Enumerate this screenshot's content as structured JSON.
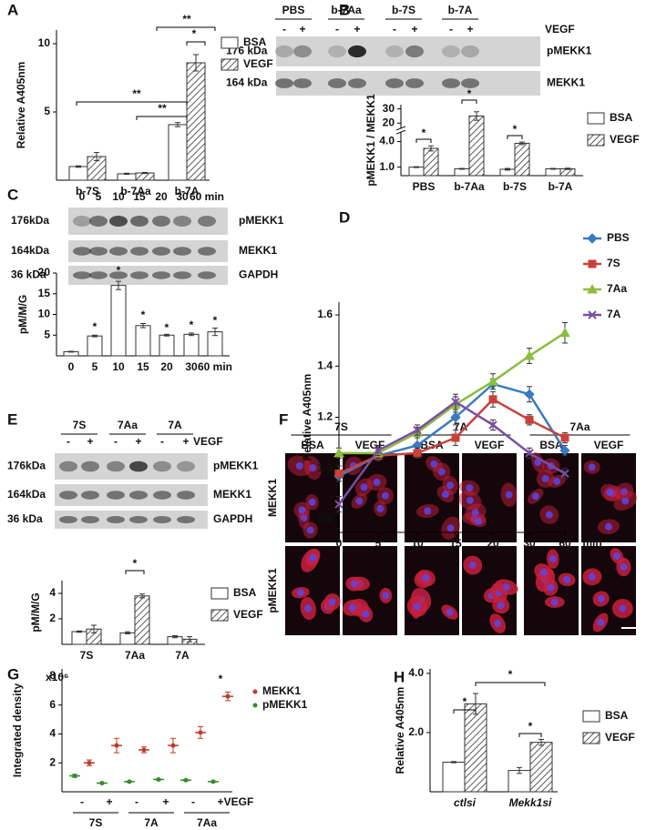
{
  "panel_labels": [
    "A",
    "B",
    "C",
    "D",
    "E",
    "F",
    "G",
    "H"
  ],
  "blots": [
    {
      "lanes": [
        "PBS",
        "b-7Aa",
        "b-7S",
        "b-7A"
      ],
      "treatment": "VEGF",
      "signs": [
        "-",
        "+"
      ],
      "bands": [
        {
          "size": "176 kDa",
          "protein": "pMEKK1"
        },
        {
          "size": "164 kDa",
          "protein": "MEKK1"
        }
      ]
    },
    {
      "lanes": [
        "0",
        "5",
        "10",
        "15",
        "20",
        "30",
        "60 min"
      ],
      "bands": [
        {
          "size": "176kDa",
          "protein": "pMEKK1"
        },
        {
          "size": "164kDa",
          "protein": "MEKK1"
        },
        {
          "size": "36 kDa",
          "protein": "GAPDH"
        }
      ]
    },
    {
      "lanes": [
        "7S",
        "7Aa",
        "7A"
      ],
      "treatment": "VEGF",
      "signs": [
        "-",
        "+"
      ],
      "bands": [
        {
          "size": "176kDa",
          "protein": "pMEKK1"
        },
        {
          "size": "164kDa",
          "protein": "MEKK1"
        },
        {
          "size": "36 kDa",
          "protein": "GAPDH"
        }
      ]
    }
  ],
  "micrographs": {
    "groups": [
      "7S",
      "7A",
      "7Aa"
    ],
    "columns": [
      "BSA",
      "VEGF"
    ],
    "rows": [
      "MEKK1",
      "pMEKK1"
    ]
  },
  "chart_data": [
    {
      "type": "bar",
      "y_label": "Relative A405nm",
      "categories": [
        "b-7S",
        "b-7Aa",
        "b-7A"
      ],
      "series": [
        {
          "name": "BSA",
          "color": "#ffffff",
          "values": [
            1.0,
            0.47,
            4.07
          ],
          "errors": [
            0.05,
            0.04,
            0.15
          ]
        },
        {
          "name": "VEGF",
          "color": "#ffffff",
          "pattern": "hatch",
          "values": [
            1.73,
            0.53,
            8.6
          ],
          "errors": [
            0.3,
            0.04,
            0.6
          ]
        }
      ],
      "ylim": [
        0,
        11
      ],
      "yticks": [
        5,
        10
      ],
      "annotations": [
        "**",
        "*",
        "**",
        "**"
      ]
    },
    {
      "type": "bar",
      "y_label": "pMEKK1 / MEKK1",
      "categories": [
        "PBS",
        "b-7Aa",
        "b-7S",
        "b-7A"
      ],
      "series": [
        {
          "name": "BSA",
          "color": "#ffffff",
          "values": [
            1.0,
            0.8,
            0.75,
            0.8
          ],
          "errors": [
            0.05,
            0.05,
            0.1,
            0.05
          ]
        },
        {
          "name": "VEGF",
          "color": "#ffffff",
          "pattern": "hatch",
          "values": [
            3.2,
            25,
            3.8,
            0.8
          ],
          "errors": [
            0.3,
            3,
            0.15,
            0.08
          ]
        }
      ],
      "ylim": [
        0,
        33
      ],
      "ybreak": [
        5,
        17
      ],
      "yticks": [
        {
          "value": 1,
          "label": "1.0"
        },
        {
          "value": 4,
          "label": "4.0"
        },
        20,
        30
      ],
      "annotations": [
        "*",
        "*",
        "*"
      ]
    },
    {
      "type": "bar",
      "y_label": "pM/M/G",
      "categories": [
        "0",
        "5",
        "10",
        "15",
        "20",
        "30",
        "60 min"
      ],
      "values": [
        1,
        4.8,
        17,
        7.3,
        5,
        5.2,
        5.8
      ],
      "errors": [
        0.1,
        0.2,
        1,
        0.5,
        0.2,
        0.3,
        0.9
      ],
      "color": "#ffffff",
      "ylim": [
        0,
        20
      ],
      "yticks": [
        5,
        10,
        15,
        20
      ],
      "annotations": [
        "*",
        "*",
        "*",
        "*",
        "*",
        "*"
      ]
    },
    {
      "type": "line",
      "y_label": "Relative A405nm",
      "x_label": "min",
      "categories": [
        "0",
        "5",
        "10",
        "15",
        "20",
        "30",
        "60"
      ],
      "series": [
        {
          "name": "PBS",
          "color": "#3a7bbf",
          "marker": "diamond",
          "values": [
            0.97,
            1.05,
            1.09,
            1.2,
            1.33,
            1.29,
            1.07
          ],
          "errors": [
            0.02,
            0.02,
            0.03,
            0.03,
            0.02,
            0.03,
            0.02
          ]
        },
        {
          "name": "7S",
          "color": "#c9413a",
          "marker": "square",
          "values": [
            0.98,
            1.05,
            1.06,
            1.12,
            1.27,
            1.19,
            1.12
          ],
          "errors": [
            0.03,
            0.02,
            0.02,
            0.03,
            0.03,
            0.02,
            0.02
          ]
        },
        {
          "name": "7Aa",
          "color": "#8cbd3f",
          "marker": "triangle",
          "values": [
            1.06,
            1.06,
            1.14,
            1.25,
            1.34,
            1.44,
            1.53
          ],
          "errors": [
            0.02,
            0.02,
            0.02,
            0.03,
            0.03,
            0.03,
            0.04
          ]
        },
        {
          "name": "7A",
          "color": "#7b4ea3",
          "marker": "x",
          "values": [
            0.86,
            1.07,
            1.15,
            1.26,
            1.17,
            1.06,
            0.98
          ],
          "errors": [
            0.03,
            0.02,
            0.02,
            0.03,
            0.02,
            0.02,
            0.02
          ]
        }
      ],
      "ylim": [
        0.75,
        1.65
      ],
      "yticks": [
        0.8,
        {
          "value": 1,
          "label": "1.0"
        },
        1.2,
        1.4,
        1.6
      ]
    },
    {
      "type": "bar",
      "y_label": "pM/M/G",
      "categories": [
        "7S",
        "7Aa",
        "7A"
      ],
      "series": [
        {
          "name": "BSA",
          "color": "#ffffff",
          "values": [
            1.0,
            0.9,
            0.6
          ],
          "errors": [
            0.05,
            0.08,
            0.08
          ]
        },
        {
          "name": "VEGF",
          "color": "#ffffff",
          "pattern": "hatch",
          "values": [
            1.2,
            3.8,
            0.4
          ],
          "errors": [
            0.3,
            0.15,
            0.2
          ]
        }
      ],
      "ylim": [
        0,
        5
      ],
      "yticks": [
        2,
        4
      ],
      "annotations": [
        "*"
      ]
    },
    {
      "type": "dot",
      "y_label": "Integrated density",
      "y_unit": "x10⁶",
      "x_label": "VEGF",
      "categories": [
        "-",
        "+",
        "-",
        "+",
        "-",
        "+"
      ],
      "groups": [
        "7S",
        "7A",
        "7Aa"
      ],
      "series": [
        {
          "name": "MEKK1",
          "color": "#c0392b",
          "values": [
            2.0,
            3.2,
            2.9,
            3.2,
            4.1,
            6.6
          ],
          "errors": [
            0.2,
            0.5,
            0.2,
            0.5,
            0.4,
            0.3
          ]
        },
        {
          "name": "pMEKK1",
          "color": "#3a8a2f",
          "values": [
            1.1,
            0.6,
            0.7,
            0.85,
            0.8,
            0.7
          ],
          "errors": [
            0.1,
            0.03,
            0.03,
            0.04,
            0.04,
            0.03
          ]
        }
      ],
      "ylim": [
        0,
        8.5
      ],
      "yticks": [
        2,
        4,
        6,
        8
      ],
      "annotations": [
        "*"
      ]
    },
    {
      "type": "bar",
      "y_label": "Relative A405nm",
      "categories": [
        "ctlsi",
        "Mekk1si"
      ],
      "series": [
        {
          "name": "BSA",
          "color": "#ffffff",
          "values": [
            1.0,
            0.72
          ],
          "errors": [
            0.02,
            0.1
          ]
        },
        {
          "name": "VEGF",
          "color": "#ffffff",
          "pattern": "hatch",
          "values": [
            2.97,
            1.67
          ],
          "errors": [
            0.35,
            0.1
          ]
        }
      ],
      "ylim": [
        0,
        4.15
      ],
      "yticks": [
        {
          "value": 2,
          "label": "2.0"
        },
        {
          "value": 4,
          "label": "4.0"
        }
      ],
      "annotations": [
        "*",
        "*",
        "*"
      ]
    }
  ]
}
